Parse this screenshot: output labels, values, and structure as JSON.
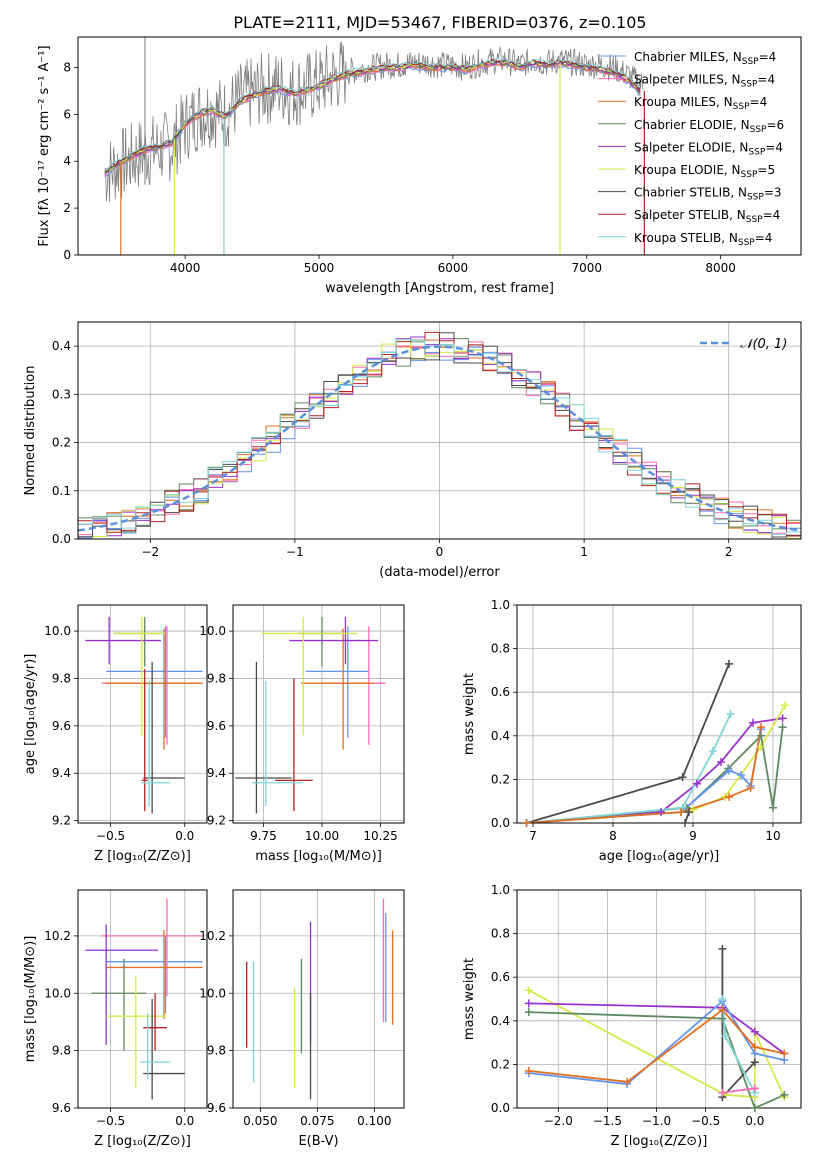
{
  "title": "PLATE=2111, MJD=53467, FIBERID=0376, z=0.105",
  "chart_data": [
    {
      "id": "spectrum",
      "type": "line",
      "xlabel": "wavelength [Angstrom, rest frame]",
      "ylabel": "Flux [fλ 10⁻¹⁷ erg cm⁻² s⁻¹ A⁻¹]",
      "xlim": [
        3200,
        8600
      ],
      "ylim": [
        0,
        9.3
      ],
      "xticks": [
        4000,
        5000,
        6000,
        7000,
        8000
      ],
      "yticks": [
        0,
        2,
        4,
        6,
        8
      ],
      "legend_position": "right",
      "x": [
        3400,
        3500,
        3600,
        3700,
        3800,
        3900,
        4000,
        4100,
        4200,
        4300,
        4400,
        4500,
        4600,
        4700,
        4800,
        4900,
        5000,
        5100,
        5200,
        5300,
        5400,
        5500,
        5600,
        5700,
        5800,
        5900,
        6000,
        6100,
        6200,
        6300,
        6400,
        6500,
        6600,
        6700,
        6800,
        6900,
        7000,
        7100,
        7200,
        7300,
        7400
      ],
      "observed": [
        3.5,
        3.8,
        4.1,
        4.4,
        4.5,
        4.7,
        5.5,
        6.0,
        6.2,
        6.0,
        6.6,
        6.9,
        7.1,
        7.2,
        7.0,
        7.1,
        7.3,
        7.6,
        7.8,
        7.9,
        8.0,
        8.1,
        8.1,
        8.2,
        8.2,
        8.1,
        8.1,
        8.0,
        8.2,
        8.3,
        8.3,
        8.1,
        8.3,
        8.2,
        8.3,
        8.2,
        8.1,
        8.1,
        8.0,
        7.7,
        7.3
      ],
      "model": [
        3.5,
        3.9,
        4.2,
        4.5,
        4.6,
        4.8,
        5.6,
        6.0,
        6.2,
        5.9,
        6.5,
        6.8,
        7.0,
        7.1,
        6.9,
        7.0,
        7.2,
        7.5,
        7.7,
        7.8,
        7.9,
        8.0,
        8.0,
        8.1,
        8.0,
        8.0,
        8.0,
        7.9,
        8.1,
        8.2,
        8.2,
        8.0,
        8.2,
        8.1,
        8.2,
        8.1,
        8.0,
        7.9,
        7.8,
        7.5,
        7.0
      ],
      "series": [
        {
          "name": "Chabrier MILES, N",
          "sub": "SSP",
          "suffix": "=4",
          "color": "#6495ed"
        },
        {
          "name": "Salpeter MILES, N",
          "sub": "SSP",
          "suffix": "=4",
          "color": "#ff69b4"
        },
        {
          "name": "Kroupa MILES, N",
          "sub": "SSP",
          "suffix": "=4",
          "color": "#e07020"
        },
        {
          "name": "Chabrier ELODIE, N",
          "sub": "SSP",
          "suffix": "=6",
          "color": "#5f8a5f"
        },
        {
          "name": "Salpeter ELODIE, N",
          "sub": "SSP",
          "suffix": "=4",
          "color": "#9932cc"
        },
        {
          "name": "Kroupa ELODIE, N",
          "sub": "SSP",
          "suffix": "=5",
          "color": "#d8e84a"
        },
        {
          "name": "Chabrier STELIB, N",
          "sub": "SSP",
          "suffix": "=3",
          "color": "#4a4a4a"
        },
        {
          "name": "Salpeter STELIB, N",
          "sub": "SSP",
          "suffix": "=4",
          "color": "#b22222"
        },
        {
          "name": "Kroupa STELIB, N",
          "sub": "SSP",
          "suffix": "=4",
          "color": "#7fd4d8"
        }
      ]
    },
    {
      "id": "residuals",
      "type": "line",
      "xlabel": "(data-model)/error",
      "ylabel": "Normed distribution",
      "xlim": [
        -2.5,
        2.5
      ],
      "ylim": [
        0,
        0.45
      ],
      "xticks": [
        -2,
        -1,
        0,
        1,
        2
      ],
      "yticks": [
        0.0,
        0.1,
        0.2,
        0.3,
        0.4
      ],
      "legend_position": "top-right",
      "grid": true,
      "normal_label": "𝒩(0, 1)",
      "normal_color": "#5b8fd8"
    },
    {
      "id": "age-vs-Z",
      "type": "scatter",
      "xlabel": "Z [log₁₀(Z/Z⊙)]",
      "ylabel": "age  [log₁₀(age/yr)]",
      "xlim": [
        -0.72,
        0.15
      ],
      "ylim": [
        9.19,
        10.11
      ],
      "xticks": [
        -0.5,
        0.0
      ],
      "yticks": [
        9.2,
        9.4,
        9.6,
        9.8,
        10.0
      ],
      "grid": true,
      "points": [
        {
          "s": 0,
          "x": -0.13,
          "y": 9.83,
          "xl": -0.53,
          "xh": 0.12,
          "yl": 9.55,
          "yh": 10.02
        },
        {
          "s": 1,
          "x": -0.12,
          "y": 9.78,
          "xl": -0.56,
          "xh": 0.12,
          "yl": 9.52,
          "yh": 10.02
        },
        {
          "s": 2,
          "x": -0.14,
          "y": 9.78,
          "xl": -0.53,
          "xh": 0.12,
          "yl": 9.5,
          "yh": 10.01
        },
        {
          "s": 3,
          "x": -0.27,
          "y": 9.99,
          "xl": -0.48,
          "xh": -0.13,
          "yl": 9.85,
          "yh": 10.06
        },
        {
          "s": 4,
          "x": -0.51,
          "y": 9.96,
          "xl": -0.67,
          "xh": -0.16,
          "yl": 9.86,
          "yh": 10.06
        },
        {
          "s": 5,
          "x": -0.29,
          "y": 9.99,
          "xl": -0.48,
          "xh": -0.13,
          "yl": 9.56,
          "yh": 10.06
        },
        {
          "s": 6,
          "x": -0.22,
          "y": 9.38,
          "xl": -0.28,
          "xh": 0.0,
          "yl": 9.23,
          "yh": 9.87
        },
        {
          "s": 7,
          "x": -0.27,
          "y": 9.37,
          "xl": -0.29,
          "xh": -0.25,
          "yl": 9.24,
          "yh": 9.84
        },
        {
          "s": 8,
          "x": -0.24,
          "y": 9.36,
          "xl": -0.29,
          "xh": -0.1,
          "yl": 9.26,
          "yh": 9.79
        }
      ]
    },
    {
      "id": "age-vs-mass",
      "type": "scatter",
      "xlabel": "mass [log₁₀(M/M⊙)]",
      "ylabel": "",
      "xlim": [
        9.62,
        10.35
      ],
      "ylim": [
        9.19,
        10.11
      ],
      "xticks": [
        9.75,
        10.0,
        10.25
      ],
      "yticks": [
        9.2,
        9.4,
        9.6,
        9.8,
        10.0
      ],
      "grid": true,
      "points": [
        {
          "s": 0,
          "x": 10.11,
          "y": 9.83,
          "xl": 9.93,
          "xh": 10.2,
          "yl": 9.55,
          "yh": 10.02
        },
        {
          "s": 1,
          "x": 10.2,
          "y": 9.78,
          "xl": 9.99,
          "xh": 10.27,
          "yl": 9.52,
          "yh": 10.02
        },
        {
          "s": 2,
          "x": 10.09,
          "y": 9.78,
          "xl": 9.91,
          "xh": 10.22,
          "yl": 9.5,
          "yh": 10.01
        },
        {
          "s": 3,
          "x": 10.0,
          "y": 9.99,
          "xl": 9.9,
          "xh": 10.09,
          "yl": 9.85,
          "yh": 10.06
        },
        {
          "s": 4,
          "x": 10.1,
          "y": 9.96,
          "xl": 9.86,
          "xh": 10.24,
          "yl": 9.86,
          "yh": 10.06
        },
        {
          "s": 5,
          "x": 9.92,
          "y": 9.99,
          "xl": 9.74,
          "xh": 10.15,
          "yl": 9.56,
          "yh": 10.06
        },
        {
          "s": 6,
          "x": 9.72,
          "y": 9.38,
          "xl": 9.63,
          "xh": 9.87,
          "yl": 9.23,
          "yh": 9.87
        },
        {
          "s": 7,
          "x": 9.88,
          "y": 9.37,
          "xl": 9.8,
          "xh": 9.96,
          "yl": 9.24,
          "yh": 9.8
        },
        {
          "s": 8,
          "x": 9.76,
          "y": 9.36,
          "xl": 9.7,
          "xh": 9.92,
          "yl": 9.26,
          "yh": 9.79
        }
      ]
    },
    {
      "id": "weight-vs-age",
      "type": "line",
      "xlabel": "age  [log₁₀(age/yr)]",
      "ylabel": "mass weight",
      "xlim": [
        6.8,
        10.35
      ],
      "ylim": [
        0,
        1.0
      ],
      "xticks": [
        7,
        8,
        9,
        10
      ],
      "yticks": [
        0.0,
        0.2,
        0.4,
        0.6,
        0.8,
        1.0
      ],
      "grid": true,
      "lines": [
        {
          "s": 6,
          "x": [
            6.92,
            8.87,
            9.45
          ],
          "y": [
            0.0,
            0.21,
            0.73
          ]
        },
        {
          "s": 4,
          "x": [
            6.92,
            8.6,
            9.05,
            9.35,
            9.75,
            10.12
          ],
          "y": [
            0.0,
            0.05,
            0.18,
            0.28,
            0.46,
            0.48
          ]
        },
        {
          "s": 5,
          "x": [
            6.92,
            8.85,
            9.0,
            9.4,
            9.85,
            10.15
          ],
          "y": [
            0.0,
            0.05,
            0.06,
            0.12,
            0.35,
            0.54
          ]
        },
        {
          "s": 3,
          "x": [
            6.92,
            8.92,
            9.44,
            9.85,
            10.0,
            10.12
          ],
          "y": [
            0.0,
            0.07,
            0.25,
            0.4,
            0.07,
            0.44
          ]
        },
        {
          "s": 8,
          "x": [
            6.92,
            8.87,
            9.25,
            9.47
          ],
          "y": [
            0.0,
            0.07,
            0.33,
            0.5
          ]
        },
        {
          "s": 0,
          "x": [
            6.92,
            8.85,
            9.45,
            9.6,
            9.72,
            9.85
          ],
          "y": [
            0.0,
            0.05,
            0.24,
            0.22,
            0.17,
            0.43
          ]
        },
        {
          "s": 2,
          "x": [
            6.92,
            8.85,
            9.45,
            9.72,
            9.85
          ],
          "y": [
            0.0,
            0.05,
            0.12,
            0.16,
            0.44
          ]
        },
        {
          "s": 6,
          "x": [
            8.9,
            8.95
          ],
          "y": [
            0.0,
            0.05
          ]
        }
      ]
    },
    {
      "id": "mass-vs-Z",
      "type": "scatter",
      "xlabel": "Z [log₁₀(Z/Z⊙)]",
      "ylabel": "mass [log₁₀(M/M⊙)]",
      "xlim": [
        -0.72,
        0.15
      ],
      "ylim": [
        9.6,
        10.36
      ],
      "xticks": [
        -0.5,
        0.0
      ],
      "yticks": [
        9.6,
        9.8,
        10.0,
        10.2
      ],
      "grid": true,
      "points": [
        {
          "s": 0,
          "x": -0.13,
          "y": 10.11,
          "xl": -0.53,
          "xh": 0.12,
          "yl": 9.93,
          "yh": 10.2
        },
        {
          "s": 1,
          "x": -0.12,
          "y": 10.2,
          "xl": -0.56,
          "xh": 0.12,
          "yl": 9.99,
          "yh": 10.33
        },
        {
          "s": 2,
          "x": -0.14,
          "y": 10.09,
          "xl": -0.53,
          "xh": 0.12,
          "yl": 9.91,
          "yh": 10.22
        },
        {
          "s": 3,
          "x": -0.41,
          "y": 10.0,
          "xl": -0.63,
          "xh": -0.26,
          "yl": 9.8,
          "yh": 10.12
        },
        {
          "s": 4,
          "x": -0.53,
          "y": 10.15,
          "xl": -0.67,
          "xh": -0.18,
          "yl": 9.82,
          "yh": 10.24
        },
        {
          "s": 5,
          "x": -0.33,
          "y": 9.92,
          "xl": -0.53,
          "xh": -0.13,
          "yl": 9.67,
          "yh": 10.06
        },
        {
          "s": 6,
          "x": -0.22,
          "y": 9.72,
          "xl": -0.28,
          "xh": 0.0,
          "yl": 9.63,
          "yh": 9.98
        },
        {
          "s": 7,
          "x": -0.2,
          "y": 9.88,
          "xl": -0.28,
          "xh": -0.12,
          "yl": 9.8,
          "yh": 10.0
        },
        {
          "s": 8,
          "x": -0.25,
          "y": 9.76,
          "xl": -0.3,
          "xh": -0.1,
          "yl": 9.7,
          "yh": 9.93
        }
      ]
    },
    {
      "id": "mass-vs-ebv",
      "type": "scatter",
      "xlabel": "E(B-V)",
      "ylabel": "",
      "xlim": [
        0.038,
        0.113
      ],
      "ylim": [
        9.6,
        10.36
      ],
      "xticks": [
        0.05,
        0.075,
        0.1
      ],
      "yticks": [
        9.6,
        9.8,
        10.0,
        10.2
      ],
      "grid": true,
      "points": [
        {
          "s": 7,
          "x": 0.044,
          "y": 9.96,
          "yl": 9.81,
          "yh": 10.11
        },
        {
          "s": 8,
          "x": 0.047,
          "y": 9.9,
          "yl": 9.69,
          "yh": 10.11
        },
        {
          "s": 5,
          "x": 0.065,
          "y": 9.85,
          "yl": 9.67,
          "yh": 10.02
        },
        {
          "s": 3,
          "x": 0.068,
          "y": 9.95,
          "yl": 9.79,
          "yh": 10.12
        },
        {
          "s": 4,
          "x": 0.072,
          "y": 10.05,
          "yl": 9.83,
          "yh": 10.25
        },
        {
          "s": 6,
          "x": 0.072,
          "y": 9.85,
          "yl": 9.63,
          "yh": 10.0
        },
        {
          "s": 1,
          "x": 0.104,
          "y": 10.12,
          "yl": 9.9,
          "yh": 10.33
        },
        {
          "s": 0,
          "x": 0.105,
          "y": 10.08,
          "yl": 9.9,
          "yh": 10.28
        },
        {
          "s": 2,
          "x": 0.108,
          "y": 10.07,
          "yl": 9.89,
          "yh": 10.22
        }
      ]
    },
    {
      "id": "weight-vs-Z",
      "type": "line",
      "xlabel": "Z [log₁₀(Z/Z⊙)]",
      "ylabel": "mass weight",
      "xlim": [
        -2.42,
        0.47
      ],
      "ylim": [
        0,
        1.0
      ],
      "xticks": [
        -2.0,
        -1.5,
        -1.0,
        -0.5,
        0.0
      ],
      "yticks": [
        0.0,
        0.2,
        0.4,
        0.6,
        0.8,
        1.0
      ],
      "grid": true,
      "lines": [
        {
          "s": 5,
          "x": [
            -2.3,
            -0.3,
            0.0,
            0.0,
            0.3
          ],
          "y": [
            0.54,
            0.06,
            0.05,
            0.35,
            0.05
          ]
        },
        {
          "s": 4,
          "x": [
            -2.3,
            -0.33,
            0.0,
            0.3
          ],
          "y": [
            0.48,
            0.46,
            0.35,
            0.25
          ]
        },
        {
          "s": 3,
          "x": [
            -2.3,
            -0.33,
            0.0,
            0.3
          ],
          "y": [
            0.44,
            0.41,
            0.0,
            0.06
          ]
        },
        {
          "s": 0,
          "x": [
            -2.3,
            -1.3,
            -0.33,
            0.0,
            0.3
          ],
          "y": [
            0.16,
            0.11,
            0.49,
            0.25,
            0.22
          ]
        },
        {
          "s": 2,
          "x": [
            -2.3,
            -1.3,
            -0.33,
            0.0,
            0.3
          ],
          "y": [
            0.17,
            0.12,
            0.45,
            0.28,
            0.25
          ]
        },
        {
          "s": 6,
          "x": [
            -0.33,
            -0.33,
            0.0
          ],
          "y": [
            0.73,
            0.05,
            0.21
          ]
        },
        {
          "s": 8,
          "x": [
            -0.33,
            -0.3,
            0.0
          ],
          "y": [
            0.5,
            0.33,
            0.07
          ]
        },
        {
          "s": 1,
          "x": [
            -0.33,
            0.0
          ],
          "y": [
            0.07,
            0.09
          ]
        }
      ]
    }
  ]
}
